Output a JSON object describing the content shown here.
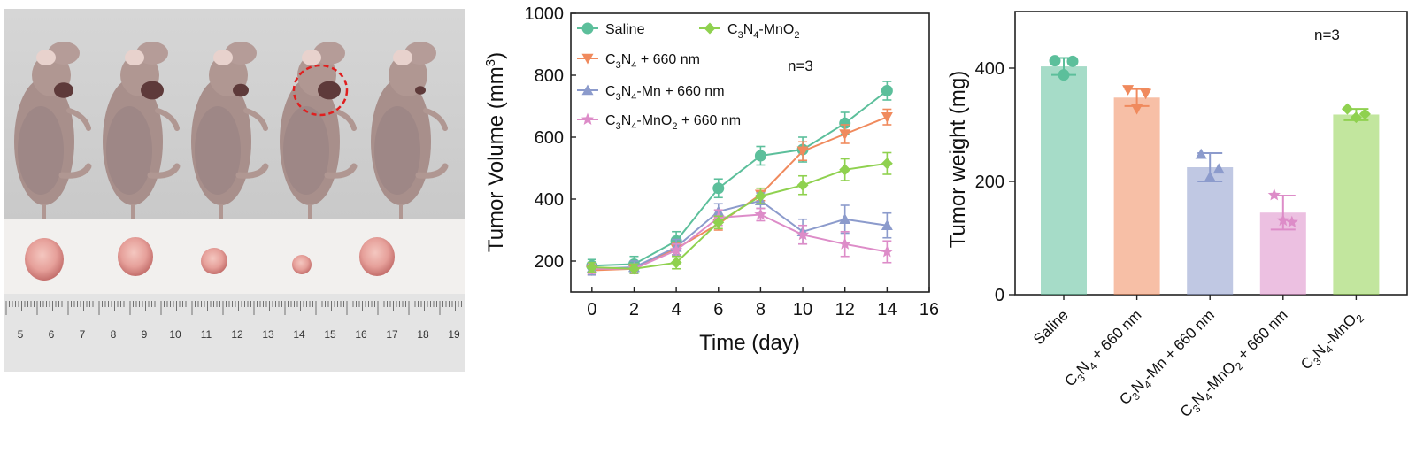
{
  "colors": {
    "saline": "#5cbf9b",
    "c3n4_660": "#f08a5d",
    "c3n4mn_660": "#8c9bcc",
    "c3n4mno2_660": "#dd8cc8",
    "c3n4mno2": "#8fd14f"
  },
  "photo": {
    "ruler_numbers": [
      "5",
      "6",
      "7",
      "8",
      "9",
      "10",
      "11",
      "12",
      "13",
      "14",
      "15",
      "16",
      "17",
      "18",
      "19"
    ]
  },
  "chart_data": [
    {
      "type": "line",
      "xlabel": "Time (day)",
      "ylabel": "Tumor Volume (mm",
      "ylabel_sup": "3",
      "ylabel_end": ")",
      "xlim": [
        -1,
        16
      ],
      "ylim": [
        100,
        1000
      ],
      "x_ticks": [
        "0",
        "2",
        "4",
        "6",
        "8",
        "10",
        "12",
        "14",
        "16"
      ],
      "y_ticks": [
        "200",
        "400",
        "600",
        "800",
        "1000"
      ],
      "annotation": "n=3",
      "x": [
        0,
        2,
        4,
        6,
        8,
        10,
        12,
        14
      ],
      "series": [
        {
          "key": "saline",
          "legend_parts": [
            "Saline"
          ],
          "marker": "circle",
          "values": [
            185,
            190,
            265,
            435,
            540,
            560,
            645,
            750
          ],
          "errors": [
            20,
            25,
            30,
            30,
            30,
            40,
            35,
            30
          ]
        },
        {
          "key": "c3n4_660",
          "legend_parts": [
            "C",
            "3",
            "N",
            "4",
            " + 660 nm"
          ],
          "marker": "triangle-down",
          "values": [
            170,
            175,
            240,
            320,
            415,
            555,
            610,
            665
          ],
          "errors": [
            15,
            15,
            20,
            20,
            20,
            30,
            30,
            25
          ]
        },
        {
          "key": "c3n4mn_660",
          "legend_parts": [
            "C",
            "3",
            "N",
            "4",
            "-Mn + 660 nm"
          ],
          "marker": "triangle-up",
          "values": [
            175,
            180,
            245,
            360,
            395,
            295,
            335,
            315
          ],
          "errors": [
            20,
            20,
            25,
            25,
            25,
            40,
            45,
            40
          ]
        },
        {
          "key": "c3n4mno2_660",
          "legend_parts": [
            "C",
            "3",
            "N",
            "4",
            "-MnO",
            "2",
            " + 660 nm"
          ],
          "marker": "star",
          "values": [
            175,
            175,
            235,
            340,
            350,
            285,
            255,
            230
          ],
          "errors": [
            15,
            15,
            20,
            25,
            20,
            30,
            40,
            35
          ]
        },
        {
          "key": "c3n4mno2",
          "legend_parts": [
            "C",
            "3",
            "N",
            "4",
            "-MnO",
            "2"
          ],
          "marker": "diamond",
          "values": [
            180,
            175,
            195,
            325,
            410,
            445,
            495,
            515
          ],
          "errors": [
            15,
            15,
            20,
            20,
            25,
            30,
            35,
            35
          ]
        }
      ]
    },
    {
      "type": "bar",
      "ylabel": "Tumor weight (mg)",
      "ylim": [
        0,
        500
      ],
      "y_ticks": [
        "0",
        "200",
        "400"
      ],
      "annotation": "n=3",
      "categories": [
        {
          "key": "saline",
          "parts": [
            "Saline"
          ]
        },
        {
          "key": "c3n4_660",
          "parts": [
            "C",
            "3",
            "N",
            "4",
            " + 660 nm"
          ]
        },
        {
          "key": "c3n4mn_660",
          "parts": [
            "C",
            "3",
            "N",
            "4",
            "-Mn + 660 nm"
          ]
        },
        {
          "key": "c3n4mno2_660",
          "parts": [
            "C",
            "3",
            "N",
            "4",
            "-MnO",
            "2",
            " + 660 nm"
          ]
        },
        {
          "key": "c3n4mno2",
          "parts": [
            "C",
            "3",
            "N",
            "4",
            "-MnO",
            "2"
          ]
        }
      ],
      "values": [
        403,
        348,
        225,
        145,
        318
      ],
      "errors": [
        15,
        15,
        25,
        30,
        10
      ],
      "points": [
        [
          413,
          412,
          388
        ],
        [
          362,
          355,
          328
        ],
        [
          248,
          222,
          208
        ],
        [
          176,
          128,
          131
        ],
        [
          328,
          319,
          313
        ]
      ],
      "point_markers": [
        "circle",
        "triangle-down",
        "triangle-up",
        "star",
        "diamond"
      ]
    }
  ]
}
